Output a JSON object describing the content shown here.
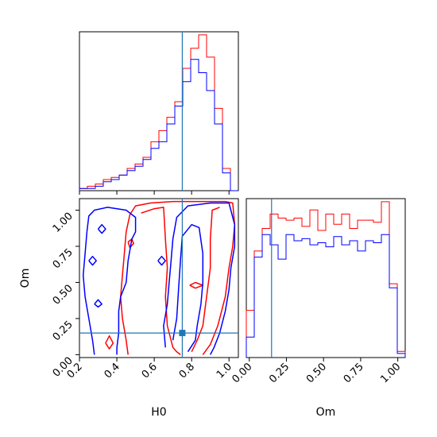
{
  "colors": {
    "series_red": "#ff0000",
    "series_blue": "#0000ff",
    "truth": "#1f77b4",
    "frame": "#000000"
  },
  "chart_data": [
    {
      "panel": "H0 marginal",
      "type": "area",
      "title": "",
      "xlabel": "",
      "ylabel": "",
      "xlim": [
        0.2,
        1.05
      ],
      "y_ticks_shown": false,
      "bin_edges": [
        0.2,
        0.2425,
        0.285,
        0.3275,
        0.37,
        0.4125,
        0.455,
        0.4975,
        0.54,
        0.5825,
        0.625,
        0.6675,
        0.71,
        0.7525,
        0.795,
        0.8375,
        0.88,
        0.9225,
        0.965,
        1.0075,
        1.05
      ],
      "series": [
        {
          "color": "red",
          "values": [
            1,
            2,
            3,
            5,
            6,
            7,
            10,
            12,
            15,
            22,
            27,
            33,
            40,
            55,
            64,
            70,
            60,
            37,
            10,
            0
          ]
        },
        {
          "color": "blue",
          "values": [
            1,
            1,
            2,
            4,
            5,
            7,
            9,
            11,
            14,
            19,
            22,
            30,
            38,
            49,
            59,
            53,
            45,
            30,
            8,
            0
          ]
        }
      ],
      "truth_value": 0.75
    },
    {
      "panel": "Om marginal",
      "type": "area",
      "title": "",
      "xlabel": "Om",
      "ylabel": "",
      "xlim": [
        -0.02,
        1.05
      ],
      "x_ticks": [
        "0.00",
        "0.25",
        "0.50",
        "0.75",
        "1.00"
      ],
      "bin_edges": [
        -0.02,
        0.0335,
        0.087,
        0.1405,
        0.194,
        0.2475,
        0.301,
        0.3545,
        0.408,
        0.4615,
        0.515,
        0.5685,
        0.622,
        0.6755,
        0.729,
        0.7825,
        0.836,
        0.8895,
        0.943,
        0.9965,
        1.05
      ],
      "series": [
        {
          "color": "red",
          "values": [
            23,
            52,
            63,
            70,
            68,
            67,
            68,
            64,
            72,
            62,
            70,
            65,
            70,
            63,
            67,
            67,
            66,
            76,
            36,
            3
          ]
        },
        {
          "color": "blue",
          "values": [
            10,
            49,
            60,
            55,
            48,
            60,
            57,
            58,
            55,
            56,
            54,
            59,
            55,
            57,
            52,
            57,
            56,
            60,
            34,
            2
          ]
        }
      ],
      "truth_value": 0.15
    },
    {
      "panel": "H0-Om joint",
      "type": "contour",
      "title": "",
      "xlabel": "H0",
      "ylabel": "Om",
      "xlim": [
        0.2,
        1.05
      ],
      "ylim": [
        -0.02,
        1.08
      ],
      "x_ticks": [
        "0.2",
        "0.4",
        "0.6",
        "0.8",
        "1.0"
      ],
      "y_ticks": [
        "0.00",
        "0.25",
        "0.50",
        "0.75",
        "1.00"
      ],
      "truth_point": [
        0.75,
        0.15
      ],
      "series": [
        {
          "color": "red",
          "level": "outer",
          "path": [
            [
              0.46,
              0.0
            ],
            [
              0.45,
              0.1
            ],
            [
              0.43,
              0.25
            ],
            [
              0.42,
              0.4
            ],
            [
              0.43,
              0.55
            ],
            [
              0.44,
              0.7
            ],
            [
              0.45,
              0.85
            ],
            [
              0.47,
              0.97
            ],
            [
              0.5,
              1.03
            ],
            [
              0.58,
              1.05
            ],
            [
              0.7,
              1.06
            ],
            [
              0.8,
              1.06
            ],
            [
              0.9,
              1.06
            ],
            [
              0.98,
              1.06
            ],
            [
              1.02,
              1.05
            ],
            [
              1.03,
              0.9
            ],
            [
              1.02,
              0.75
            ],
            [
              1.0,
              0.6
            ],
            [
              0.98,
              0.4
            ],
            [
              0.94,
              0.2
            ],
            [
              0.9,
              0.07
            ],
            [
              0.86,
              0.0
            ]
          ]
        },
        {
          "color": "red",
          "level": "inner",
          "path": [
            [
              0.53,
              0.98
            ],
            [
              0.6,
              1.01
            ],
            [
              0.65,
              1.02
            ],
            [
              0.66,
              0.8
            ],
            [
              0.67,
              0.6
            ],
            [
              0.66,
              0.4
            ],
            [
              0.67,
              0.2
            ],
            [
              0.7,
              0.05
            ],
            [
              0.72,
              0.02
            ],
            [
              0.74,
              0.0
            ]
          ]
        },
        {
          "color": "red",
          "level": "inner",
          "path": [
            [
              0.8,
              0.02
            ],
            [
              0.83,
              0.1
            ],
            [
              0.86,
              0.2
            ],
            [
              0.88,
              0.4
            ],
            [
              0.9,
              0.6
            ],
            [
              0.9,
              0.8
            ],
            [
              0.91,
              1.0
            ],
            [
              0.95,
              1.02
            ]
          ]
        },
        {
          "color": "red",
          "level": "island",
          "path": [
            [
              0.34,
              0.08
            ],
            [
              0.36,
              0.13
            ],
            [
              0.38,
              0.08
            ],
            [
              0.36,
              0.04
            ],
            [
              0.34,
              0.08
            ]
          ]
        },
        {
          "color": "red",
          "level": "island",
          "path": [
            [
              0.46,
              0.78
            ],
            [
              0.48,
              0.8
            ],
            [
              0.49,
              0.77
            ],
            [
              0.47,
              0.74
            ],
            [
              0.46,
              0.78
            ]
          ]
        },
        {
          "color": "red",
          "level": "island",
          "path": [
            [
              0.79,
              0.48
            ],
            [
              0.82,
              0.5
            ],
            [
              0.86,
              0.48
            ],
            [
              0.82,
              0.46
            ],
            [
              0.79,
              0.48
            ]
          ]
        },
        {
          "color": "blue",
          "level": "outer",
          "path": [
            [
              0.28,
              0.0
            ],
            [
              0.27,
              0.1
            ],
            [
              0.25,
              0.25
            ],
            [
              0.23,
              0.4
            ],
            [
              0.22,
              0.55
            ],
            [
              0.23,
              0.7
            ],
            [
              0.24,
              0.85
            ],
            [
              0.25,
              0.96
            ],
            [
              0.28,
              1.0
            ],
            [
              0.35,
              1.02
            ],
            [
              0.45,
              1.0
            ],
            [
              0.5,
              0.95
            ],
            [
              0.5,
              0.85
            ],
            [
              0.48,
              0.8
            ],
            [
              0.46,
              0.65
            ],
            [
              0.45,
              0.5
            ],
            [
              0.42,
              0.4
            ],
            [
              0.41,
              0.3
            ],
            [
              0.41,
              0.15
            ],
            [
              0.4,
              0.05
            ],
            [
              0.4,
              0.0
            ]
          ]
        },
        {
          "color": "blue",
          "level": "inner",
          "path": [
            [
              0.7,
              0.1
            ],
            [
              0.72,
              0.25
            ],
            [
              0.73,
              0.45
            ],
            [
              0.74,
              0.65
            ],
            [
              0.75,
              0.82
            ],
            [
              0.8,
              0.9
            ],
            [
              0.84,
              0.88
            ],
            [
              0.86,
              0.7
            ],
            [
              0.86,
              0.5
            ],
            [
              0.85,
              0.35
            ],
            [
              0.83,
              0.2
            ],
            [
              0.82,
              0.1
            ],
            [
              0.78,
              0.02
            ]
          ]
        },
        {
          "color": "blue",
          "level": "outer",
          "path": [
            [
              0.66,
              0.05
            ],
            [
              0.65,
              0.2
            ],
            [
              0.67,
              0.35
            ],
            [
              0.68,
              0.5
            ],
            [
              0.69,
              0.65
            ],
            [
              0.7,
              0.8
            ],
            [
              0.72,
              0.95
            ],
            [
              0.78,
              1.03
            ],
            [
              0.9,
              1.05
            ],
            [
              1.0,
              1.05
            ],
            [
              1.03,
              0.9
            ],
            [
              1.03,
              0.75
            ],
            [
              1.01,
              0.6
            ],
            [
              1.0,
              0.45
            ],
            [
              0.98,
              0.3
            ],
            [
              0.95,
              0.15
            ],
            [
              0.92,
              0.05
            ],
            [
              0.9,
              0.0
            ]
          ]
        },
        {
          "color": "blue",
          "level": "island",
          "path": [
            [
              0.28,
              0.35
            ],
            [
              0.3,
              0.38
            ],
            [
              0.32,
              0.35
            ],
            [
              0.3,
              0.33
            ],
            [
              0.28,
              0.35
            ]
          ]
        },
        {
          "color": "blue",
          "level": "island",
          "path": [
            [
              0.25,
              0.65
            ],
            [
              0.27,
              0.68
            ],
            [
              0.29,
              0.65
            ],
            [
              0.27,
              0.62
            ],
            [
              0.25,
              0.65
            ]
          ]
        },
        {
          "color": "blue",
          "level": "island",
          "path": [
            [
              0.62,
              0.65
            ],
            [
              0.64,
              0.68
            ],
            [
              0.66,
              0.65
            ],
            [
              0.64,
              0.62
            ],
            [
              0.62,
              0.65
            ]
          ]
        },
        {
          "color": "blue",
          "level": "island",
          "path": [
            [
              0.3,
              0.87
            ],
            [
              0.32,
              0.9
            ],
            [
              0.34,
              0.87
            ],
            [
              0.32,
              0.84
            ],
            [
              0.3,
              0.87
            ]
          ]
        }
      ]
    }
  ]
}
